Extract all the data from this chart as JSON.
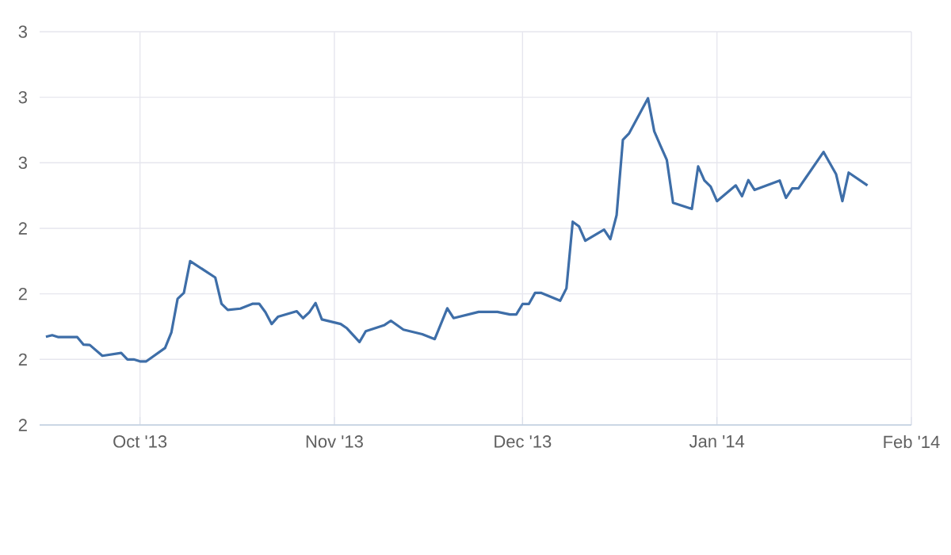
{
  "chart_data": {
    "type": "line",
    "color": "#3e6ea8",
    "x": [
      "2013-09-16",
      "2013-09-17",
      "2013-09-18",
      "2013-09-21",
      "2013-09-22",
      "2013-09-23",
      "2013-09-25",
      "2013-09-28",
      "2013-09-29",
      "2013-09-30",
      "2013-10-01",
      "2013-10-02",
      "2013-10-05",
      "2013-10-06",
      "2013-10-07",
      "2013-10-08",
      "2013-10-09",
      "2013-10-13",
      "2013-10-14",
      "2013-10-15",
      "2013-10-17",
      "2013-10-19",
      "2013-10-20",
      "2013-10-21",
      "2013-10-22",
      "2013-10-23",
      "2013-10-26",
      "2013-10-27",
      "2013-10-28",
      "2013-10-29",
      "2013-10-30",
      "2013-11-02",
      "2013-11-03",
      "2013-11-05",
      "2013-11-06",
      "2013-11-09",
      "2013-11-10",
      "2013-11-12",
      "2013-11-15",
      "2013-11-17",
      "2013-11-19",
      "2013-11-20",
      "2013-11-24",
      "2013-11-27",
      "2013-11-29",
      "2013-11-30",
      "2013-12-01",
      "2013-12-02",
      "2013-12-03",
      "2013-12-04",
      "2013-12-07",
      "2013-12-08",
      "2013-12-09",
      "2013-12-10",
      "2013-12-11",
      "2013-12-14",
      "2013-12-15",
      "2013-12-16",
      "2013-12-17",
      "2013-12-18",
      "2013-12-21",
      "2013-12-22",
      "2013-12-23",
      "2013-12-24",
      "2013-12-25",
      "2013-12-28",
      "2013-12-29",
      "2013-12-30",
      "2013-12-31",
      "2014-01-01",
      "2014-01-04",
      "2014-01-05",
      "2014-01-06",
      "2014-01-07",
      "2014-01-11",
      "2014-01-12",
      "2014-01-13",
      "2014-01-14",
      "2014-01-18",
      "2014-01-20",
      "2014-01-21",
      "2014-01-22",
      "2014-01-25"
    ],
    "values": [
      2.069,
      2.074,
      2.068,
      2.068,
      2.045,
      2.044,
      2.011,
      2.02,
      2.0,
      2.0,
      1.994,
      1.994,
      2.035,
      2.082,
      2.185,
      2.203,
      2.3,
      2.25,
      2.17,
      2.151,
      2.155,
      2.17,
      2.17,
      2.144,
      2.108,
      2.13,
      2.147,
      2.126,
      2.144,
      2.172,
      2.122,
      2.108,
      2.095,
      2.053,
      2.086,
      2.105,
      2.118,
      2.091,
      2.077,
      2.062,
      2.156,
      2.126,
      2.145,
      2.145,
      2.137,
      2.137,
      2.169,
      2.169,
      2.203,
      2.203,
      2.179,
      2.217,
      2.42,
      2.406,
      2.362,
      2.396,
      2.367,
      2.44,
      2.67,
      2.69,
      2.797,
      2.696,
      2.652,
      2.609,
      2.478,
      2.459,
      2.589,
      2.546,
      2.527,
      2.483,
      2.531,
      2.498,
      2.547,
      2.517,
      2.546,
      2.493,
      2.522,
      2.522,
      2.633,
      2.565,
      2.483,
      2.57,
      2.531
    ],
    "xlim": [
      "2013-09-15",
      "2014-02-01"
    ],
    "xticks": [
      {
        "value": "2013-10-01",
        "label": "Oct '13"
      },
      {
        "value": "2013-11-01",
        "label": "Nov '13"
      },
      {
        "value": "2013-12-01",
        "label": "Dec '13"
      },
      {
        "value": "2014-01-01",
        "label": "Jan '14"
      },
      {
        "value": "2014-02-01",
        "label": "Feb '14"
      }
    ],
    "ylim": [
      1.8,
      3.0
    ],
    "yticks": [
      {
        "value": 1.8,
        "label": "2"
      },
      {
        "value": 2.0,
        "label": "2"
      },
      {
        "value": 2.2,
        "label": "2"
      },
      {
        "value": 2.4,
        "label": "2"
      },
      {
        "value": 2.6,
        "label": "3"
      },
      {
        "value": 2.8,
        "label": "3"
      },
      3
    ],
    "grid": true,
    "marker": "none",
    "line_style": "solid"
  }
}
